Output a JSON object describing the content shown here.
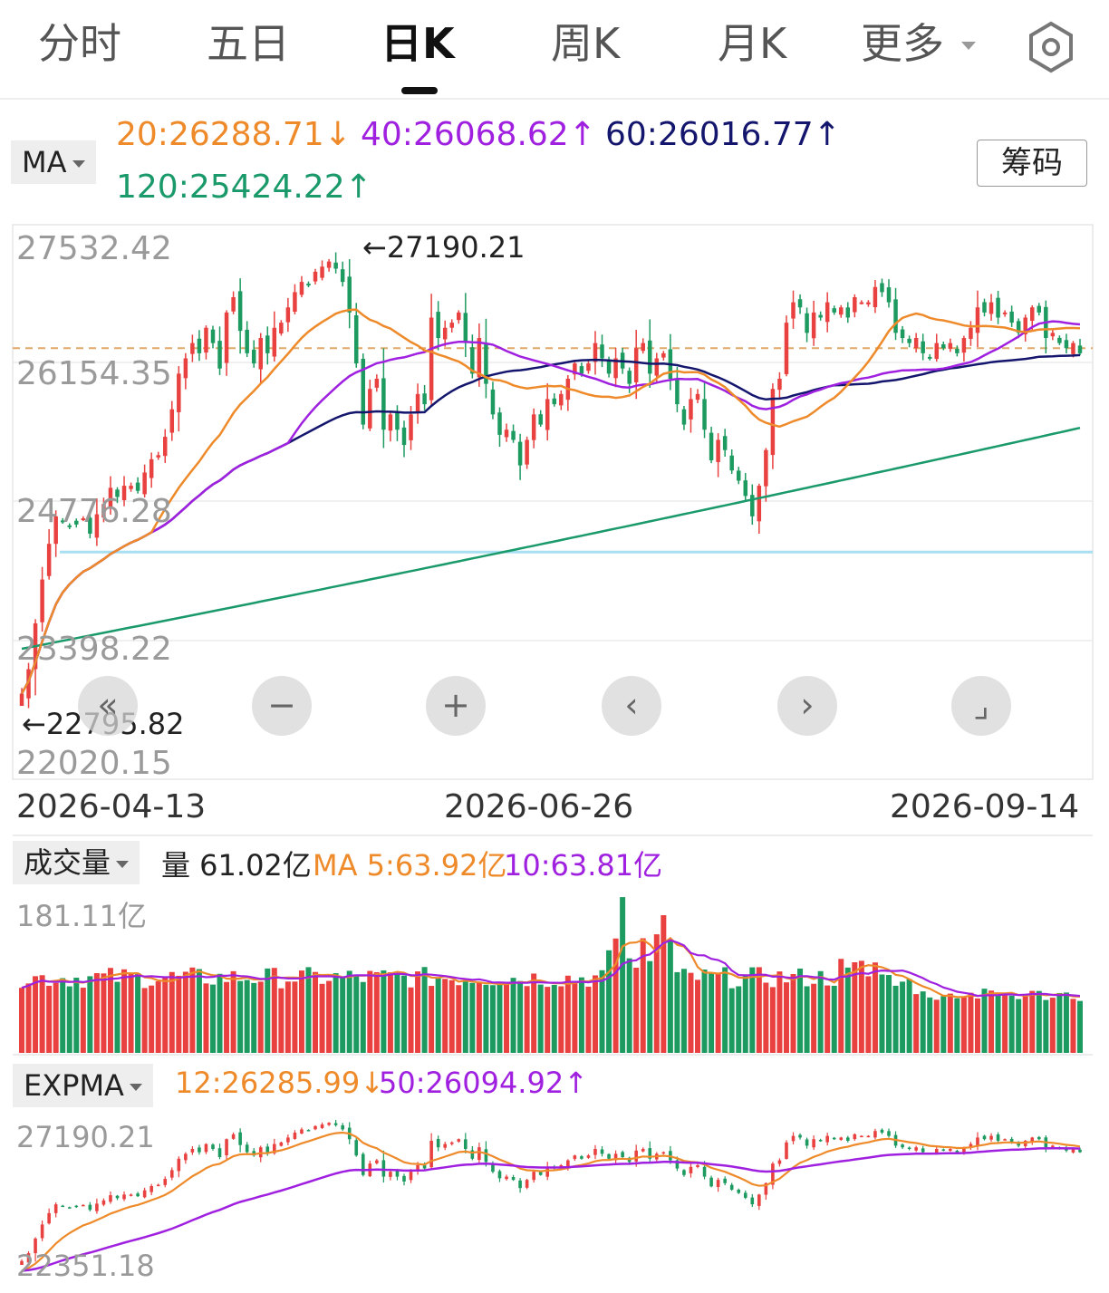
{
  "tabs": [
    {
      "label": "分时",
      "active": false
    },
    {
      "label": "五日",
      "active": false
    },
    {
      "label": "日K",
      "active": true
    },
    {
      "label": "周K",
      "active": false
    },
    {
      "label": "月K",
      "active": false
    },
    {
      "label": "更多",
      "active": false
    }
  ],
  "settings_icon": "hexagon-gear-icon",
  "ma_legend": {
    "selector": "MA",
    "items": [
      {
        "text": "20:26288.71",
        "arrow": "↓",
        "color": "#ee8a2a"
      },
      {
        "text": "40:26068.62",
        "arrow": "↑",
        "color": "#a020e0"
      },
      {
        "text": "60:26016.77",
        "arrow": "↑",
        "color": "#14166e"
      },
      {
        "text": "120:25424.22",
        "arrow": "↑",
        "color": "#1a9a6a"
      }
    ]
  },
  "chip_button": "筹码",
  "main_chart": {
    "y_ticks": [
      "27532.42",
      "26154.35",
      "24776.28",
      "23398.22",
      "22020.15"
    ],
    "ylim": [
      22020.15,
      27532.42
    ],
    "high_note": "←27190.21",
    "low_note": "←22795.82",
    "reference_price": 26250,
    "support_line": 24250,
    "dates": [
      "2026-04-13",
      "2026-06-26",
      "2026-09-14"
    ]
  },
  "controls": [
    "«",
    "−",
    "+",
    "‹",
    "›",
    "⌟"
  ],
  "volume": {
    "selector": "成交量",
    "value": "量 61.02亿",
    "ma5": "MA 5:63.92亿",
    "ma10": "10:63.81亿",
    "y_max_label": "181.11亿"
  },
  "expma": {
    "selector": "EXPMA",
    "e12": "12:26285.99",
    "e12_arrow": "↓",
    "e50": "50:26094.92",
    "e50_arrow": "↑",
    "y_top": "27190.21",
    "y_bottom": "22351.18"
  },
  "colors": {
    "up": "#e8413f",
    "down": "#1c9a5f",
    "ma20": "#ee8a2a",
    "ma40": "#a020e0",
    "ma60": "#14166e",
    "ma120": "#1a9a6a",
    "support": "#a8dff3"
  },
  "chart_data": {
    "type": "candlestick",
    "x_start": "2026-04-13",
    "x_labels": [
      "2026-04-13",
      "2026-06-26",
      "2026-09-14"
    ],
    "ylim": [
      22020.15,
      27532.42
    ],
    "key_points": {
      "max_high": 27190.21,
      "min_low": 22795.82
    },
    "close": [
      22860,
      23100,
      23550,
      23980,
      24330,
      24600,
      24550,
      24500,
      24520,
      24580,
      24430,
      24620,
      24720,
      24880,
      24790,
      24900,
      24900,
      24850,
      25030,
      25160,
      25200,
      25380,
      25650,
      26000,
      26150,
      26300,
      26200,
      26450,
      26300,
      26050,
      26600,
      26750,
      26420,
      26200,
      26100,
      26350,
      26200,
      26450,
      26500,
      26650,
      26800,
      26900,
      26870,
      27000,
      27050,
      27100,
      27030,
      26900,
      26600,
      26100,
      25500,
      25850,
      25950,
      25450,
      25600,
      25450,
      25300,
      25600,
      25800,
      25700,
      26550,
      26350,
      26450,
      26500,
      26600,
      26300,
      26000,
      26350,
      25900,
      25600,
      25400,
      25450,
      25350,
      25100,
      25350,
      25600,
      25500,
      25750,
      25700,
      25800,
      25950,
      26100,
      26000,
      26100,
      26300,
      26150,
      26000,
      26150,
      26050,
      25900,
      26250,
      26300,
      26000,
      26150,
      26200,
      25950,
      25700,
      25500,
      25750,
      25800,
      25450,
      25150,
      25350,
      25250,
      25050,
      24950,
      24800,
      24600,
      24900,
      25250,
      25850,
      25950,
      26500,
      26700,
      26650,
      26400,
      26600,
      26550,
      26700,
      26600,
      26650,
      26550,
      26750,
      26700,
      26700,
      26850,
      26800,
      26700,
      26400,
      26350,
      26300,
      26350,
      26200,
      26150,
      26300,
      26250,
      26300,
      26200,
      26350,
      26450,
      26650,
      26600,
      26700,
      26550,
      26600,
      26500,
      26400,
      26550,
      26650,
      26600,
      26350,
      26400,
      26300,
      26250,
      26300,
      26200
    ]
  }
}
